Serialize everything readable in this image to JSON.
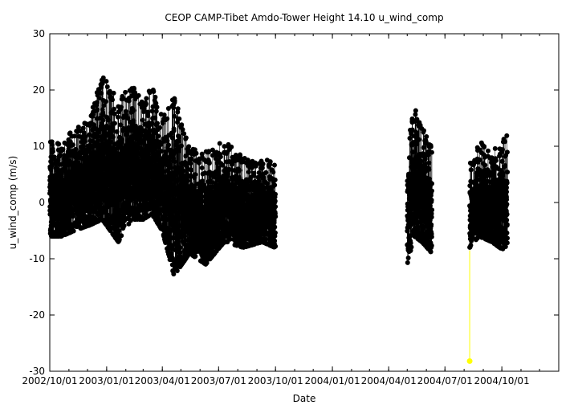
{
  "chart_data": {
    "type": "scatter",
    "title": "CEOP CAMP-Tibet Amdo-Tower Height 14.10 u_wind_comp",
    "xlabel": "Date",
    "ylabel": "u_wind_comp (m/s)",
    "xlim": [
      "2002-10-01",
      "2005-01-01"
    ],
    "ylim": [
      -30,
      30
    ],
    "x_ticks": [
      "2002/10/01",
      "2003/01/01",
      "2003/04/01",
      "2003/07/01",
      "2003/10/01",
      "2004/01/01",
      "2004/04/01",
      "2004/07/01",
      "2004/10/01"
    ],
    "y_ticks": [
      -30,
      -20,
      -10,
      0,
      10,
      20,
      30
    ],
    "grid": false,
    "legend": "none",
    "colors": {
      "main": "#000000",
      "flagged": "#ffff00"
    },
    "series": [
      {
        "style": "points-with-lines",
        "color": "#000000",
        "segments": [
          {
            "start": "2002-10-01",
            "end": "2003-10-01",
            "envelope": [
              {
                "date": "2002-10-01",
                "min": -6,
                "max": 12
              },
              {
                "date": "2002-10-20",
                "min": -6,
                "max": 10
              },
              {
                "date": "2002-11-10",
                "min": -5,
                "max": 14
              },
              {
                "date": "2002-12-05",
                "min": -4,
                "max": 15
              },
              {
                "date": "2002-12-25",
                "min": -3,
                "max": 23
              },
              {
                "date": "2003-01-20",
                "min": -7,
                "max": 18
              },
              {
                "date": "2003-02-10",
                "min": -3,
                "max": 21
              },
              {
                "date": "2003-03-01",
                "min": -3,
                "max": 18
              },
              {
                "date": "2003-03-15",
                "min": -2,
                "max": 22
              },
              {
                "date": "2003-04-01",
                "min": -5,
                "max": 15
              },
              {
                "date": "2003-04-20",
                "min": -13,
                "max": 19
              },
              {
                "date": "2003-05-15",
                "min": -9,
                "max": 10
              },
              {
                "date": "2003-06-10",
                "min": -11,
                "max": 9
              },
              {
                "date": "2003-07-10",
                "min": -7,
                "max": 11
              },
              {
                "date": "2003-08-10",
                "min": -8,
                "max": 8
              },
              {
                "date": "2003-09-10",
                "min": -7,
                "max": 8
              },
              {
                "date": "2003-09-30",
                "min": -8,
                "max": 7
              }
            ]
          },
          {
            "start": "2004-05-01",
            "end": "2004-06-10",
            "envelope": [
              {
                "date": "2004-05-01",
                "min": -11,
                "max": 10
              },
              {
                "date": "2004-05-12",
                "min": -6,
                "max": 17
              },
              {
                "date": "2004-05-25",
                "min": -7,
                "max": 14
              },
              {
                "date": "2004-06-10",
                "min": -9,
                "max": 10
              }
            ]
          },
          {
            "start": "2004-08-10",
            "end": "2004-10-10",
            "envelope": [
              {
                "date": "2004-08-10",
                "min": -8,
                "max": 7
              },
              {
                "date": "2004-08-25",
                "min": -6,
                "max": 11
              },
              {
                "date": "2004-09-15",
                "min": -7,
                "max": 9
              },
              {
                "date": "2004-10-10",
                "min": -9,
                "max": 12
              }
            ]
          }
        ]
      },
      {
        "style": "point",
        "color": "#ffff00",
        "points": [
          {
            "date": "2004-08-10",
            "value": -28.2
          }
        ],
        "connector": {
          "from": -8.5,
          "to": -28.2
        }
      }
    ]
  }
}
